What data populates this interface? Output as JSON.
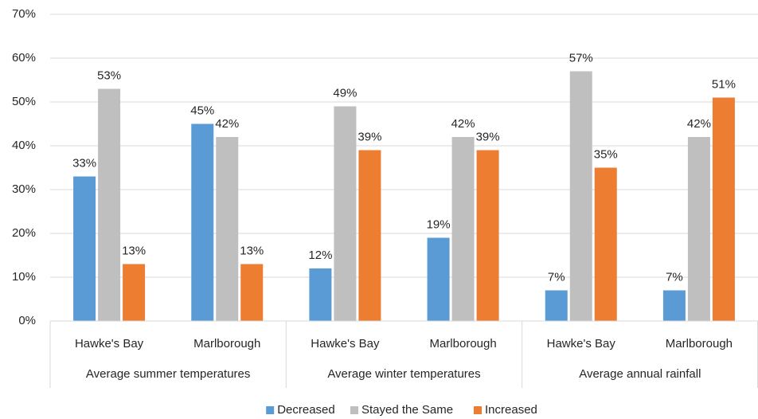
{
  "chart_data": {
    "type": "bar",
    "groups": [
      {
        "name": "Average summer temperatures",
        "categories": [
          "Hawke's Bay",
          "Marlborough"
        ]
      },
      {
        "name": "Average winter temperatures",
        "categories": [
          "Hawke's Bay",
          "Marlborough"
        ]
      },
      {
        "name": "Average annual rainfall",
        "categories": [
          "Hawke's Bay",
          "Marlborough"
        ]
      }
    ],
    "series": [
      {
        "name": "Decreased",
        "color": "#5b9bd5",
        "values": [
          33,
          45,
          12,
          19,
          7,
          7
        ],
        "value_labels": [
          "33%",
          "45%",
          "12%",
          "19%",
          "7%",
          "7%"
        ]
      },
      {
        "name": "Stayed the Same",
        "color": "#bfbfbf",
        "values": [
          53,
          42,
          49,
          42,
          57,
          42
        ],
        "value_labels": [
          "53%",
          "42%",
          "49%",
          "42%",
          "57%",
          "42%"
        ]
      },
      {
        "name": "Increased",
        "color": "#ed7d31",
        "values": [
          13,
          13,
          39,
          39,
          35,
          51
        ],
        "value_labels": [
          "13%",
          "13%",
          "39%",
          "39%",
          "35%",
          "51%"
        ]
      }
    ],
    "ylim": [
      0,
      70
    ],
    "yticks": [
      {
        "value": 0,
        "label": "0%"
      },
      {
        "value": 10,
        "label": "10%"
      },
      {
        "value": 20,
        "label": "20%"
      },
      {
        "value": 30,
        "label": "30%"
      },
      {
        "value": 40,
        "label": "40%"
      },
      {
        "value": 50,
        "label": "50%"
      },
      {
        "value": 60,
        "label": "60%"
      },
      {
        "value": 70,
        "label": "70%"
      }
    ],
    "grid": true,
    "legend": "bottom"
  }
}
